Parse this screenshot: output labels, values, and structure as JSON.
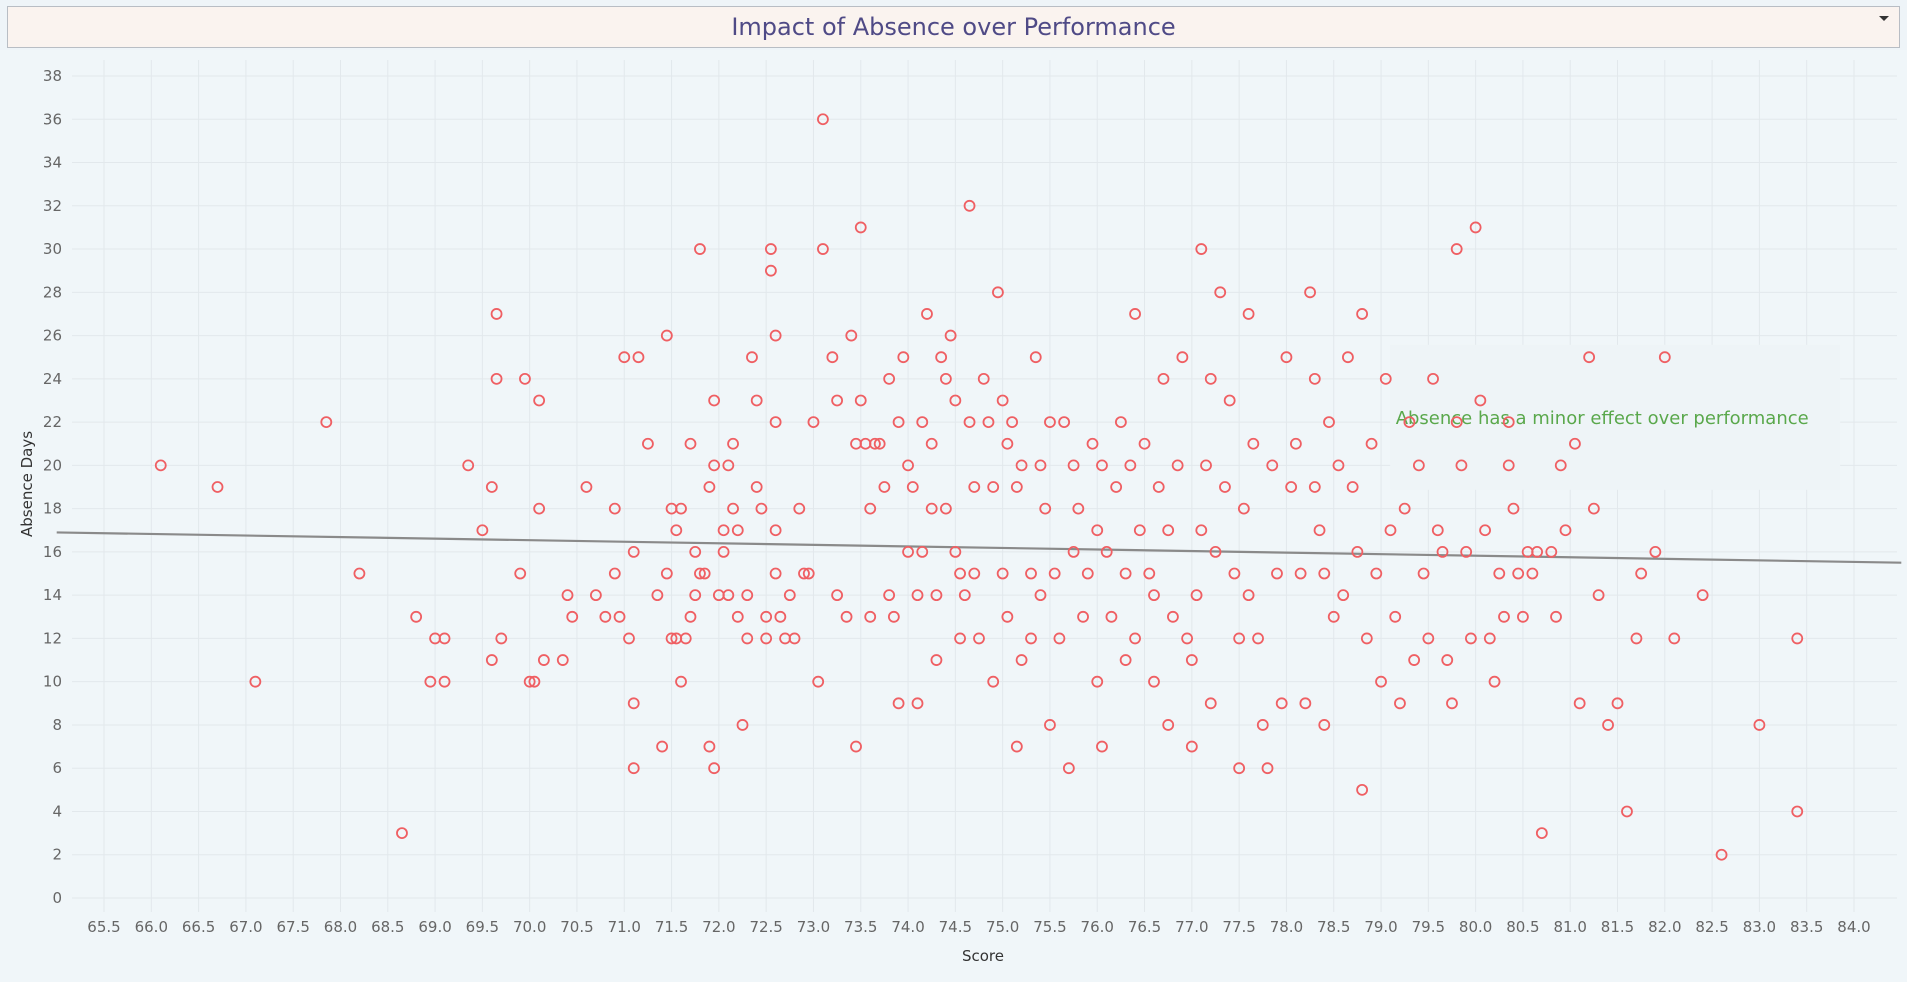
{
  "chart_data": {
    "type": "scatter",
    "title": "Impact of Absence over Performance",
    "xlabel": "Score",
    "ylabel": "Absence Days",
    "xlim": [
      65.5,
      84.0
    ],
    "ylim": [
      0,
      38
    ],
    "xticks": [
      "65.5",
      "66.0",
      "66.5",
      "67.0",
      "67.5",
      "68.0",
      "68.5",
      "69.0",
      "69.5",
      "70.0",
      "70.5",
      "71.0",
      "71.5",
      "72.0",
      "72.5",
      "73.0",
      "73.5",
      "74.0",
      "74.5",
      "75.0",
      "75.5",
      "76.0",
      "76.5",
      "77.0",
      "77.5",
      "78.0",
      "78.5",
      "79.0",
      "79.5",
      "80.0",
      "80.5",
      "81.0",
      "81.5",
      "82.0",
      "82.5",
      "83.0",
      "83.5",
      "84.0"
    ],
    "yticks": [
      "0",
      "2",
      "4",
      "6",
      "8",
      "10",
      "12",
      "14",
      "16",
      "18",
      "20",
      "22",
      "24",
      "26",
      "28",
      "30",
      "32",
      "34",
      "36",
      "38"
    ],
    "grid": true,
    "marker_color": "#ef5f63",
    "trend_color": "#8a8a8a",
    "trend_line": {
      "x": [
        65.0,
        84.5
      ],
      "y": [
        16.9,
        15.5
      ]
    },
    "annotation": "Absence has a minor effect over performance",
    "annotation_color": "#5aa84c",
    "annotation_anchor": {
      "x": 81.0,
      "y": 22.2
    },
    "series": [
      {
        "points": [
          [
            66.1,
            20
          ],
          [
            66.7,
            19
          ],
          [
            67.1,
            10
          ],
          [
            67.85,
            22
          ],
          [
            68.2,
            15
          ],
          [
            68.65,
            3
          ],
          [
            68.8,
            13
          ],
          [
            68.95,
            10
          ],
          [
            69.0,
            12
          ],
          [
            69.1,
            12
          ],
          [
            69.1,
            10
          ],
          [
            69.35,
            20
          ],
          [
            69.5,
            17
          ],
          [
            69.6,
            19
          ],
          [
            69.6,
            11
          ],
          [
            69.65,
            27
          ],
          [
            69.65,
            24
          ],
          [
            69.7,
            12
          ],
          [
            69.9,
            15
          ],
          [
            69.95,
            24
          ],
          [
            70.0,
            10
          ],
          [
            70.05,
            10
          ],
          [
            70.1,
            23
          ],
          [
            70.1,
            18
          ],
          [
            70.15,
            11
          ],
          [
            70.35,
            11
          ],
          [
            70.4,
            14
          ],
          [
            70.45,
            13
          ],
          [
            70.6,
            19
          ],
          [
            70.7,
            14
          ],
          [
            70.8,
            13
          ],
          [
            70.9,
            18
          ],
          [
            70.9,
            15
          ],
          [
            70.95,
            13
          ],
          [
            71.0,
            25
          ],
          [
            71.05,
            12
          ],
          [
            71.1,
            16
          ],
          [
            71.1,
            9
          ],
          [
            71.15,
            25
          ],
          [
            71.1,
            6
          ],
          [
            71.25,
            21
          ],
          [
            71.35,
            14
          ],
          [
            71.4,
            7
          ],
          [
            71.45,
            26
          ],
          [
            71.45,
            15
          ],
          [
            71.5,
            18
          ],
          [
            71.5,
            12
          ],
          [
            71.55,
            12
          ],
          [
            71.55,
            17
          ],
          [
            71.6,
            18
          ],
          [
            71.6,
            10
          ],
          [
            71.65,
            12
          ],
          [
            71.7,
            21
          ],
          [
            71.75,
            16
          ],
          [
            71.75,
            14
          ],
          [
            71.7,
            13
          ],
          [
            71.8,
            30
          ],
          [
            71.8,
            15
          ],
          [
            71.85,
            15
          ],
          [
            71.9,
            19
          ],
          [
            71.95,
            23
          ],
          [
            71.95,
            20
          ],
          [
            71.9,
            7
          ],
          [
            71.95,
            6
          ],
          [
            72.0,
            14
          ],
          [
            72.05,
            17
          ],
          [
            72.05,
            16
          ],
          [
            72.1,
            20
          ],
          [
            72.1,
            14
          ],
          [
            72.15,
            21
          ],
          [
            72.15,
            18
          ],
          [
            72.2,
            13
          ],
          [
            72.2,
            17
          ],
          [
            72.25,
            8
          ],
          [
            72.3,
            14
          ],
          [
            72.3,
            12
          ],
          [
            72.35,
            25
          ],
          [
            72.4,
            23
          ],
          [
            72.4,
            19
          ],
          [
            72.45,
            18
          ],
          [
            72.5,
            13
          ],
          [
            72.5,
            12
          ],
          [
            72.55,
            30
          ],
          [
            72.55,
            29
          ],
          [
            72.6,
            26
          ],
          [
            72.6,
            22
          ],
          [
            72.6,
            17
          ],
          [
            72.6,
            15
          ],
          [
            72.65,
            13
          ],
          [
            72.7,
            12
          ],
          [
            72.75,
            14
          ],
          [
            72.8,
            12
          ],
          [
            72.85,
            18
          ],
          [
            72.9,
            15
          ],
          [
            72.95,
            15
          ],
          [
            73.0,
            22
          ],
          [
            73.05,
            10
          ],
          [
            73.1,
            36
          ],
          [
            73.1,
            30
          ],
          [
            73.2,
            25
          ],
          [
            73.25,
            23
          ],
          [
            73.25,
            14
          ],
          [
            73.35,
            13
          ],
          [
            73.4,
            26
          ],
          [
            73.45,
            21
          ],
          [
            73.45,
            7
          ],
          [
            73.5,
            31
          ],
          [
            73.5,
            23
          ],
          [
            73.55,
            21
          ],
          [
            73.6,
            18
          ],
          [
            73.6,
            13
          ],
          [
            73.65,
            21
          ],
          [
            73.7,
            21
          ],
          [
            73.75,
            19
          ],
          [
            73.8,
            24
          ],
          [
            73.8,
            14
          ],
          [
            73.85,
            13
          ],
          [
            73.9,
            22
          ],
          [
            73.9,
            9
          ],
          [
            73.95,
            25
          ],
          [
            74.0,
            20
          ],
          [
            74.0,
            16
          ],
          [
            74.05,
            19
          ],
          [
            74.1,
            14
          ],
          [
            74.1,
            9
          ],
          [
            74.15,
            22
          ],
          [
            74.15,
            16
          ],
          [
            74.2,
            27
          ],
          [
            74.25,
            21
          ],
          [
            74.25,
            18
          ],
          [
            74.3,
            14
          ],
          [
            74.3,
            11
          ],
          [
            74.35,
            25
          ],
          [
            74.4,
            24
          ],
          [
            74.4,
            18
          ],
          [
            74.45,
            26
          ],
          [
            74.5,
            23
          ],
          [
            74.5,
            16
          ],
          [
            74.55,
            15
          ],
          [
            74.55,
            12
          ],
          [
            74.6,
            14
          ],
          [
            74.65,
            32
          ],
          [
            74.65,
            22
          ],
          [
            74.7,
            19
          ],
          [
            74.7,
            15
          ],
          [
            74.75,
            12
          ],
          [
            74.8,
            24
          ],
          [
            74.85,
            22
          ],
          [
            74.9,
            19
          ],
          [
            74.9,
            10
          ],
          [
            74.95,
            28
          ],
          [
            75.0,
            23
          ],
          [
            75.0,
            15
          ],
          [
            75.05,
            21
          ],
          [
            75.05,
            13
          ],
          [
            75.1,
            22
          ],
          [
            75.15,
            19
          ],
          [
            75.15,
            7
          ],
          [
            75.2,
            20
          ],
          [
            75.2,
            11
          ],
          [
            75.3,
            15
          ],
          [
            75.3,
            12
          ],
          [
            75.35,
            25
          ],
          [
            75.4,
            20
          ],
          [
            75.4,
            14
          ],
          [
            75.45,
            18
          ],
          [
            75.5,
            22
          ],
          [
            75.5,
            8
          ],
          [
            75.55,
            15
          ],
          [
            75.6,
            12
          ],
          [
            75.65,
            22
          ],
          [
            75.7,
            6
          ],
          [
            75.75,
            20
          ],
          [
            75.75,
            16
          ],
          [
            75.8,
            18
          ],
          [
            75.85,
            13
          ],
          [
            75.9,
            15
          ],
          [
            75.95,
            21
          ],
          [
            76.0,
            17
          ],
          [
            76.0,
            10
          ],
          [
            76.05,
            20
          ],
          [
            76.05,
            7
          ],
          [
            76.1,
            16
          ],
          [
            76.15,
            13
          ],
          [
            76.2,
            19
          ],
          [
            76.25,
            22
          ],
          [
            76.3,
            15
          ],
          [
            76.3,
            11
          ],
          [
            76.35,
            20
          ],
          [
            76.4,
            27
          ],
          [
            76.4,
            12
          ],
          [
            76.45,
            17
          ],
          [
            76.5,
            21
          ],
          [
            76.55,
            15
          ],
          [
            76.6,
            14
          ],
          [
            76.6,
            10
          ],
          [
            76.65,
            19
          ],
          [
            76.7,
            24
          ],
          [
            76.75,
            17
          ],
          [
            76.75,
            8
          ],
          [
            76.8,
            13
          ],
          [
            76.85,
            20
          ],
          [
            76.9,
            25
          ],
          [
            76.95,
            12
          ],
          [
            77.0,
            11
          ],
          [
            77.0,
            7
          ],
          [
            77.05,
            14
          ],
          [
            77.1,
            30
          ],
          [
            77.1,
            17
          ],
          [
            77.15,
            20
          ],
          [
            77.2,
            24
          ],
          [
            77.2,
            9
          ],
          [
            77.25,
            16
          ],
          [
            77.3,
            28
          ],
          [
            77.35,
            19
          ],
          [
            77.4,
            23
          ],
          [
            77.45,
            15
          ],
          [
            77.5,
            12
          ],
          [
            77.5,
            6
          ],
          [
            77.55,
            18
          ],
          [
            77.6,
            27
          ],
          [
            77.6,
            14
          ],
          [
            77.65,
            21
          ],
          [
            77.7,
            12
          ],
          [
            77.75,
            8
          ],
          [
            77.8,
            6
          ],
          [
            77.85,
            20
          ],
          [
            77.9,
            15
          ],
          [
            77.95,
            9
          ],
          [
            78.0,
            25
          ],
          [
            78.05,
            19
          ],
          [
            78.1,
            21
          ],
          [
            78.15,
            15
          ],
          [
            78.2,
            9
          ],
          [
            78.25,
            28
          ],
          [
            78.3,
            19
          ],
          [
            78.3,
            24
          ],
          [
            78.35,
            17
          ],
          [
            78.4,
            15
          ],
          [
            78.4,
            8
          ],
          [
            78.45,
            22
          ],
          [
            78.5,
            13
          ],
          [
            78.55,
            20
          ],
          [
            78.6,
            14
          ],
          [
            78.65,
            25
          ],
          [
            78.7,
            19
          ],
          [
            78.75,
            16
          ],
          [
            78.8,
            27
          ],
          [
            78.8,
            5
          ],
          [
            78.85,
            12
          ],
          [
            78.9,
            21
          ],
          [
            78.95,
            15
          ],
          [
            79.0,
            10
          ],
          [
            79.05,
            24
          ],
          [
            79.1,
            17
          ],
          [
            79.15,
            13
          ],
          [
            79.2,
            9
          ],
          [
            79.25,
            18
          ],
          [
            79.3,
            22
          ],
          [
            79.35,
            11
          ],
          [
            79.4,
            20
          ],
          [
            79.45,
            15
          ],
          [
            79.5,
            12
          ],
          [
            79.55,
            24
          ],
          [
            79.6,
            17
          ],
          [
            79.65,
            16
          ],
          [
            79.7,
            11
          ],
          [
            79.75,
            9
          ],
          [
            79.8,
            30
          ],
          [
            79.8,
            22
          ],
          [
            79.85,
            20
          ],
          [
            79.9,
            16
          ],
          [
            79.95,
            12
          ],
          [
            80.0,
            31
          ],
          [
            80.05,
            23
          ],
          [
            80.1,
            17
          ],
          [
            80.15,
            12
          ],
          [
            80.2,
            10
          ],
          [
            80.25,
            15
          ],
          [
            80.3,
            13
          ],
          [
            80.35,
            20
          ],
          [
            80.35,
            22
          ],
          [
            80.4,
            18
          ],
          [
            80.45,
            15
          ],
          [
            80.5,
            13
          ],
          [
            80.55,
            16
          ],
          [
            80.6,
            15
          ],
          [
            80.65,
            16
          ],
          [
            80.7,
            3
          ],
          [
            80.8,
            16
          ],
          [
            80.85,
            13
          ],
          [
            80.9,
            20
          ],
          [
            80.95,
            17
          ],
          [
            81.05,
            21
          ],
          [
            81.1,
            9
          ],
          [
            81.2,
            25
          ],
          [
            81.25,
            18
          ],
          [
            81.3,
            14
          ],
          [
            81.4,
            8
          ],
          [
            81.5,
            9
          ],
          [
            81.6,
            4
          ],
          [
            81.7,
            12
          ],
          [
            81.75,
            15
          ],
          [
            81.9,
            16
          ],
          [
            82.0,
            25
          ],
          [
            82.1,
            12
          ],
          [
            82.4,
            14
          ],
          [
            82.6,
            2
          ],
          [
            83.0,
            8
          ],
          [
            83.4,
            12
          ],
          [
            83.4,
            4
          ]
        ]
      }
    ]
  }
}
